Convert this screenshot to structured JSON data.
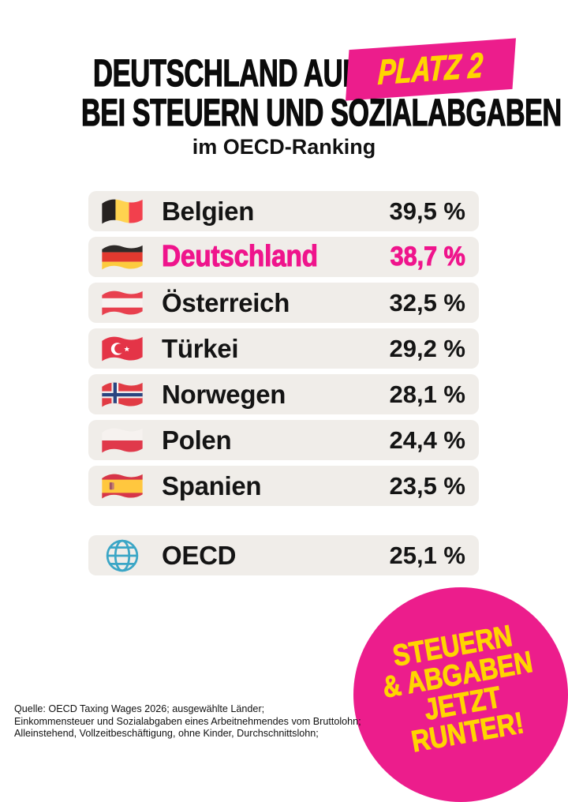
{
  "header": {
    "title_line1": "DEUTSCHLAND AUF",
    "title_highlight": "PLATZ 2",
    "title_line2": "BEI STEUERN UND SOZIALABGABEN",
    "subtitle": "im OECD-Ranking"
  },
  "ranking": {
    "rows": [
      {
        "country": "Belgien",
        "value": "39,5 %",
        "flag": "belgium",
        "highlight": false
      },
      {
        "country": "Deutschland",
        "value": "38,7 %",
        "flag": "germany",
        "highlight": true
      },
      {
        "country": "Österreich",
        "value": "32,5 %",
        "flag": "austria",
        "highlight": false
      },
      {
        "country": "Türkei",
        "value": "29,2 %",
        "flag": "turkey",
        "highlight": false
      },
      {
        "country": "Norwegen",
        "value": "28,1 %",
        "flag": "norway",
        "highlight": false
      },
      {
        "country": "Polen",
        "value": "24,4 %",
        "flag": "poland",
        "highlight": false
      },
      {
        "country": "Spanien",
        "value": "23,5 %",
        "flag": "spain",
        "highlight": false
      }
    ],
    "summary_row": {
      "label": "OECD",
      "value": "25,1 %",
      "icon": "globe-icon"
    }
  },
  "badge": {
    "lines": [
      "STEUERN",
      "& ABGABEN",
      "JETZT",
      "RUNTER!"
    ]
  },
  "source": {
    "lines": [
      "Quelle: OECD Taxing Wages 2026; ausgewählte Länder;",
      "Einkommensteuer und Sozialabgaben eines Arbeitnehmendes vom Bruttolohn;",
      "Alleinstehend, Vollzeitbeschäftigung, ohne Kinder, Durchschnittslohn;"
    ]
  },
  "colors": {
    "pink": "#ec1d8c",
    "yellow": "#ffd500",
    "row_background": "#f0ede9",
    "text": "#0b0b0b",
    "globe_blue": "#3ba6c6"
  },
  "chart_data": {
    "type": "table",
    "title": "Deutschland auf Platz 2 bei Steuern und Sozialabgaben im OECD-Ranking",
    "categories": [
      "Belgien",
      "Deutschland",
      "Österreich",
      "Türkei",
      "Norwegen",
      "Polen",
      "Spanien"
    ],
    "values": [
      39.5,
      38.7,
      32.5,
      29.2,
      28.1,
      24.4,
      23.5
    ],
    "unit": "%",
    "oecd_average": 25.1,
    "highlighted_category": "Deutschland",
    "highlighted_rank": 2
  }
}
